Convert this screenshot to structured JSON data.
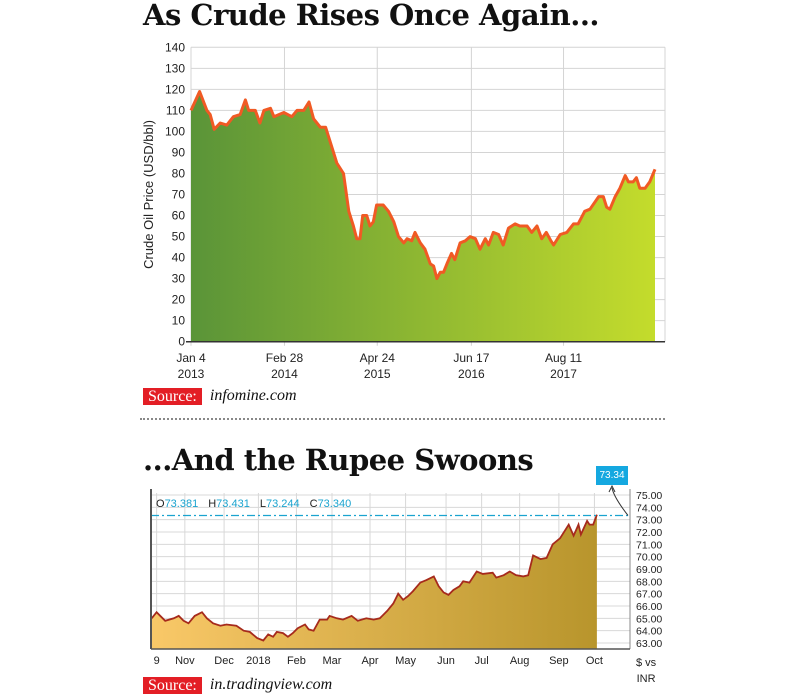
{
  "chart_data": [
    {
      "type": "area",
      "title": "As Crude Rises Once Again...",
      "xlabel": "",
      "ylabel": "Crude Oil Price (USD/bbl)",
      "x_units": "months since Jan 2013",
      "xlim": [
        0,
        70
      ],
      "ylim": [
        0,
        140
      ],
      "yticks": [
        0,
        10,
        20,
        30,
        40,
        50,
        60,
        70,
        80,
        90,
        100,
        110,
        120,
        130,
        140
      ],
      "xticks": [
        {
          "x": 0,
          "line1": "Jan 4",
          "line2": "2013"
        },
        {
          "x": 14.1,
          "line1": "Feb 28",
          "line2": "2014"
        },
        {
          "x": 28.1,
          "line1": "Apr 24",
          "line2": "2015"
        },
        {
          "x": 42.3,
          "line1": "Jun 17",
          "line2": "2016"
        },
        {
          "x": 56.2,
          "line1": "Aug 11",
          "line2": "2017"
        }
      ],
      "grid": true,
      "colors": {
        "line": "#f05a24",
        "fill_start": "#5a9438",
        "fill_end": "#c4dc2c"
      },
      "x": [
        0,
        1.3,
        2.4,
        2.9,
        3.5,
        4.4,
        5.4,
        6.4,
        7.4,
        8.2,
        8.7,
        9.7,
        10.4,
        11.0,
        12.0,
        12.5,
        14.0,
        15.2,
        16.0,
        17.0,
        17.8,
        18.5,
        19.5,
        20.3,
        21.3,
        22.0,
        23.0,
        23.8,
        24.5,
        25.0,
        25.5,
        25.9,
        26.5,
        27.0,
        27.5,
        28.0,
        29.0,
        29.8,
        30.6,
        31.3,
        32.1,
        32.6,
        33.3,
        33.8,
        34.6,
        35.3,
        36.1,
        36.6,
        37.1,
        37.6,
        38.1,
        38.6,
        39.3,
        39.8,
        40.6,
        41.4,
        42.1,
        42.9,
        43.6,
        44.4,
        44.9,
        45.6,
        46.4,
        47.1,
        47.9,
        48.9,
        49.6,
        50.7,
        51.4,
        52.2,
        52.9,
        53.6,
        54.3,
        54.7,
        55.7,
        56.7,
        57.7,
        58.4,
        59.4,
        60.2,
        61.5,
        62.2,
        62.7,
        63.2,
        64.0,
        64.7,
        65.5,
        66.0,
        66.7,
        67.2,
        67.7,
        68.5,
        69.2,
        70.0
      ],
      "values": [
        110,
        119,
        110,
        108,
        101,
        104,
        103,
        107,
        108,
        115,
        110,
        110,
        104,
        110,
        111,
        107,
        109,
        107,
        110,
        110,
        114,
        106,
        102,
        102,
        92,
        85,
        80,
        62,
        55,
        49,
        49,
        60,
        60,
        55,
        57,
        65,
        65,
        62,
        57,
        50,
        47,
        49,
        48,
        52,
        47,
        44,
        37,
        36,
        30,
        33,
        33,
        37,
        42,
        39,
        47,
        48,
        50,
        49,
        44,
        49,
        46,
        52,
        51,
        46,
        54,
        56,
        55,
        55,
        52,
        55,
        49,
        52,
        48,
        46,
        51,
        52,
        56,
        56,
        62,
        63,
        69,
        69,
        64,
        63,
        69,
        73,
        79,
        76,
        76,
        78,
        73,
        73,
        76,
        82
      ],
      "source_label": "Source:",
      "source": "infomine.com"
    },
    {
      "type": "area",
      "title": "...And the Rupee Swoons",
      "xlabel": "",
      "ylabel": "$ vs INR",
      "ylabel_line1": "$ vs",
      "ylabel_line2": "INR",
      "x_units": "days since Oct 9, 2017",
      "xlim": [
        -4.6,
        386
      ],
      "ylim": [
        62.5,
        75.5
      ],
      "yticks": [
        "63.00",
        "64.00",
        "65.00",
        "66.00",
        "67.00",
        "68.00",
        "69.00",
        "70.00",
        "71.00",
        "72.00",
        "73.00",
        "74.00",
        "75.00"
      ],
      "xticks": [
        {
          "x": 0,
          "label": "9"
        },
        {
          "x": 23,
          "label": "Nov"
        },
        {
          "x": 55,
          "label": "Dec"
        },
        {
          "x": 83,
          "label": "2018"
        },
        {
          "x": 114,
          "label": "Feb"
        },
        {
          "x": 143,
          "label": "Mar"
        },
        {
          "x": 174,
          "label": "Apr"
        },
        {
          "x": 203,
          "label": "May"
        },
        {
          "x": 236,
          "label": "Jun"
        },
        {
          "x": 265,
          "label": "Jul"
        },
        {
          "x": 296,
          "label": "Aug"
        },
        {
          "x": 328,
          "label": "Sep"
        },
        {
          "x": 357,
          "label": "Oct"
        }
      ],
      "grid": true,
      "colors": {
        "line": "#a62a1c",
        "fill_start": "#f9c868",
        "fill_end": "#b8952c",
        "last_line": "#1aa3cf"
      },
      "ohlc": {
        "o_label": "O",
        "o": "73.381",
        "h_label": "H",
        "h": "73.431",
        "l_label": "L",
        "l": "73.244",
        "c_label": "C",
        "c": "73.340"
      },
      "last_value": 73.34,
      "last_label": "73.34",
      "x": [
        -4,
        0,
        7,
        14,
        18,
        22,
        26,
        31,
        37,
        41,
        46,
        52,
        57,
        65,
        71,
        76,
        82,
        87,
        91,
        95,
        98,
        103,
        107,
        111,
        115,
        121,
        124,
        128,
        133,
        139,
        141,
        147,
        152,
        159,
        164,
        171,
        177,
        182,
        188,
        193,
        197,
        201,
        205,
        209,
        215,
        220,
        226,
        230,
        234,
        238,
        242,
        247,
        250,
        255,
        261,
        266,
        274,
        277,
        283,
        288,
        293,
        299,
        303,
        307,
        313,
        318,
        323,
        329,
        336,
        340,
        344,
        346,
        351,
        353,
        356,
        359
      ],
      "values": [
        65.0,
        65.5,
        64.8,
        65.0,
        65.2,
        64.8,
        64.6,
        65.2,
        65.5,
        65.0,
        64.6,
        64.4,
        64.5,
        64.4,
        64.0,
        63.9,
        63.4,
        63.2,
        63.7,
        63.5,
        63.9,
        63.8,
        63.5,
        63.8,
        64.2,
        64.5,
        64.1,
        64.0,
        64.9,
        64.9,
        65.2,
        65.0,
        64.9,
        65.2,
        64.8,
        65.0,
        64.9,
        65.0,
        65.6,
        66.2,
        67.0,
        66.5,
        66.8,
        67.2,
        67.9,
        68.1,
        68.4,
        67.6,
        67.1,
        66.9,
        67.3,
        67.6,
        68.0,
        67.9,
        68.8,
        68.6,
        68.7,
        68.3,
        68.5,
        68.8,
        68.5,
        68.4,
        68.5,
        70.1,
        69.8,
        69.9,
        71.0,
        71.5,
        72.6,
        71.7,
        72.6,
        71.8,
        72.9,
        72.6,
        72.6,
        73.4
      ],
      "source_label": "Source:",
      "source": "in.tradingview.com"
    }
  ]
}
